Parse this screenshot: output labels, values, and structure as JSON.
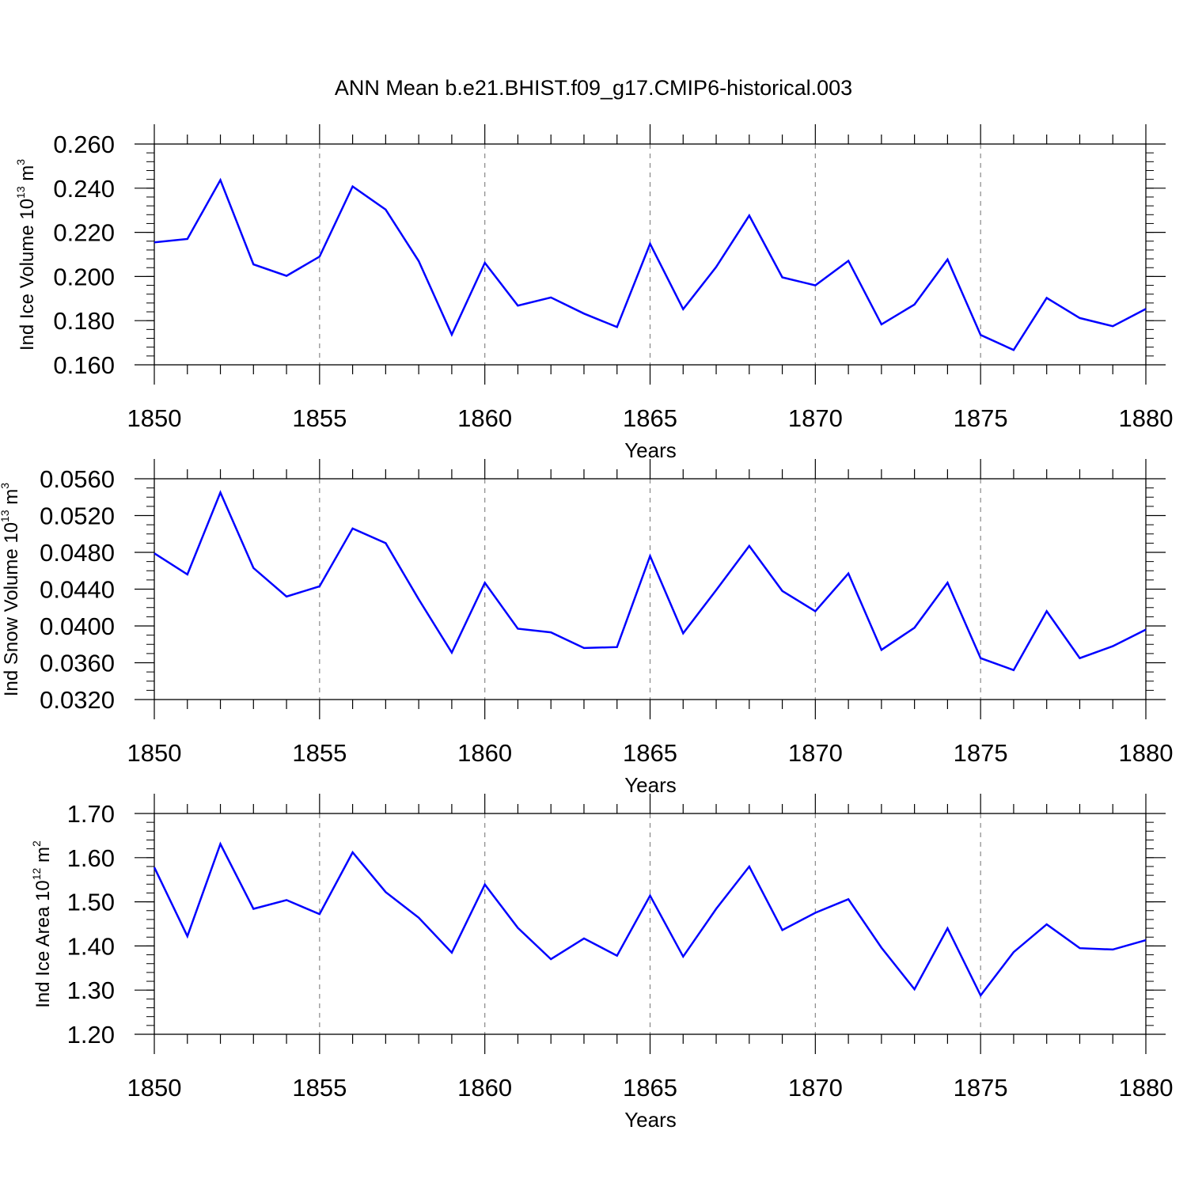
{
  "title": "ANN Mean b.e21.BHIST.f09_g17.CMIP6-historical.003",
  "chart_data": [
    {
      "type": "line",
      "ylabel": "Ind Ice Volume",
      "ylabel_unit_base": "10",
      "ylabel_unit_exp": "13",
      "ylabel_unit_symbol": "m",
      "ylabel_unit_sym_exp": "3",
      "xlabel": "Years",
      "xlim": [
        1850,
        1880
      ],
      "ylim": [
        0.16,
        0.26
      ],
      "x_major_ticks": [
        1850,
        1855,
        1860,
        1865,
        1870,
        1875,
        1880
      ],
      "x_tick_labels": [
        "1850",
        "1855",
        "1860",
        "1865",
        "1870",
        "1875",
        "1880"
      ],
      "y_major_ticks": [
        0.16,
        0.18,
        0.2,
        0.22,
        0.24,
        0.26
      ],
      "y_tick_labels": [
        "0.160",
        "0.180",
        "0.200",
        "0.220",
        "0.240",
        "0.260"
      ],
      "y_minor_step": 0.004,
      "grid": "dashed vertical at x ticks",
      "line_color": "#0000ff",
      "series": [
        {
          "name": "Ind Ice Volume",
          "x": [
            1850,
            1851,
            1852,
            1853,
            1854,
            1855,
            1856,
            1857,
            1858,
            1859,
            1860,
            1861,
            1862,
            1863,
            1864,
            1865,
            1866,
            1867,
            1868,
            1869,
            1870,
            1871,
            1872,
            1873,
            1874,
            1875,
            1876,
            1877,
            1878,
            1879,
            1880
          ],
          "values": [
            0.2155,
            0.217,
            0.2437,
            0.2055,
            0.2003,
            0.209,
            0.2408,
            0.2303,
            0.207,
            0.1737,
            0.2062,
            0.1868,
            0.1905,
            0.1832,
            0.1771,
            0.2148,
            0.1852,
            0.2043,
            0.2276,
            0.1996,
            0.196,
            0.2071,
            0.1783,
            0.1873,
            0.2077,
            0.1735,
            0.1667,
            0.1903,
            0.1812,
            0.1775,
            0.1853
          ]
        }
      ]
    },
    {
      "type": "line",
      "ylabel": "Ind Snow Volume",
      "ylabel_unit_base": "10",
      "ylabel_unit_exp": "13",
      "ylabel_unit_symbol": "m",
      "ylabel_unit_sym_exp": "3",
      "xlabel": "Years",
      "xlim": [
        1850,
        1880
      ],
      "ylim": [
        0.032,
        0.056
      ],
      "x_major_ticks": [
        1850,
        1855,
        1860,
        1865,
        1870,
        1875,
        1880
      ],
      "x_tick_labels": [
        "1850",
        "1855",
        "1860",
        "1865",
        "1870",
        "1875",
        "1880"
      ],
      "y_major_ticks": [
        0.032,
        0.036,
        0.04,
        0.044,
        0.048,
        0.052,
        0.056
      ],
      "y_tick_labels": [
        "0.0320",
        "0.0360",
        "0.0400",
        "0.0440",
        "0.0480",
        "0.0520",
        "0.0560"
      ],
      "y_minor_step": 0.001,
      "grid": "dashed vertical at x ticks",
      "line_color": "#0000ff",
      "series": [
        {
          "name": "Ind Snow Volume",
          "x": [
            1850,
            1851,
            1852,
            1853,
            1854,
            1855,
            1856,
            1857,
            1858,
            1859,
            1860,
            1861,
            1862,
            1863,
            1864,
            1865,
            1866,
            1867,
            1868,
            1869,
            1870,
            1871,
            1872,
            1873,
            1874,
            1875,
            1876,
            1877,
            1878,
            1879,
            1880
          ],
          "values": [
            0.0479,
            0.0456,
            0.0545,
            0.0463,
            0.0432,
            0.0443,
            0.0506,
            0.049,
            0.0429,
            0.0371,
            0.0447,
            0.0397,
            0.0393,
            0.0376,
            0.0377,
            0.0476,
            0.0392,
            0.0439,
            0.0487,
            0.0438,
            0.0416,
            0.0457,
            0.0374,
            0.0398,
            0.0447,
            0.0365,
            0.0352,
            0.0416,
            0.0365,
            0.0378,
            0.0396
          ]
        }
      ]
    },
    {
      "type": "line",
      "ylabel": "Ind Ice Area",
      "ylabel_unit_base": "10",
      "ylabel_unit_exp": "12",
      "ylabel_unit_symbol": "m",
      "ylabel_unit_sym_exp": "2",
      "xlabel": "Years",
      "xlim": [
        1850,
        1880
      ],
      "ylim": [
        1.2,
        1.7
      ],
      "x_major_ticks": [
        1850,
        1855,
        1860,
        1865,
        1870,
        1875,
        1880
      ],
      "x_tick_labels": [
        "1850",
        "1855",
        "1860",
        "1865",
        "1870",
        "1875",
        "1880"
      ],
      "y_major_ticks": [
        1.2,
        1.3,
        1.4,
        1.5,
        1.6,
        1.7
      ],
      "y_tick_labels": [
        "1.20",
        "1.30",
        "1.40",
        "1.50",
        "1.60",
        "1.70"
      ],
      "y_minor_step": 0.02,
      "grid": "dashed vertical at x ticks",
      "line_color": "#0000ff",
      "series": [
        {
          "name": "Ind Ice Area",
          "x": [
            1850,
            1851,
            1852,
            1853,
            1854,
            1855,
            1856,
            1857,
            1858,
            1859,
            1860,
            1861,
            1862,
            1863,
            1864,
            1865,
            1866,
            1867,
            1868,
            1869,
            1870,
            1871,
            1872,
            1873,
            1874,
            1875,
            1876,
            1877,
            1878,
            1879,
            1880
          ],
          "values": [
            1.578,
            1.422,
            1.631,
            1.484,
            1.504,
            1.472,
            1.612,
            1.522,
            1.464,
            1.385,
            1.539,
            1.441,
            1.37,
            1.417,
            1.378,
            1.514,
            1.376,
            1.484,
            1.58,
            1.436,
            1.475,
            1.506,
            1.396,
            1.302,
            1.44,
            1.288,
            1.386,
            1.449,
            1.395,
            1.392,
            1.413
          ]
        }
      ]
    }
  ]
}
